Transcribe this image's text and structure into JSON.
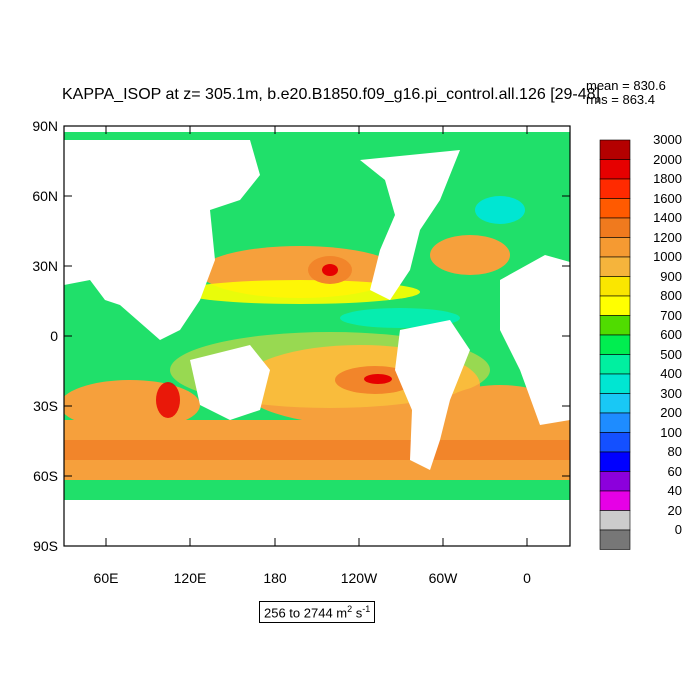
{
  "title": "KAPPA_ISOP at z= 305.1m, b.e20.B1850.f09_g16.pi_control.all.126 [29-48]",
  "stats": {
    "mean": "mean = 830.6",
    "rms": "rms = 863.4"
  },
  "map_data": {
    "y_ticks": [
      "90N",
      "60N",
      "30N",
      "0",
      "30S",
      "60S",
      "90S"
    ],
    "x_ticks": [
      "60E",
      "120E",
      "180",
      "120W",
      "60W",
      "0"
    ],
    "range_label": {
      "text": "256 to 2744 m",
      "unit_sup": "2",
      "unit_tail": " s",
      "unit_sup2": "-1"
    }
  },
  "colorbar": {
    "labels": [
      "3000",
      "2000",
      "1800",
      "1600",
      "1400",
      "1200",
      "1000",
      "900",
      "800",
      "700",
      "600",
      "500",
      "400",
      "300",
      "200",
      "100",
      "80",
      "60",
      "40",
      "20",
      "0"
    ],
    "colors": [
      "#b40000",
      "#e60000",
      "#ff2a00",
      "#ff5a00",
      "#f07a1e",
      "#f59a32",
      "#f5b43c",
      "#fae600",
      "#ffff00",
      "#50dc00",
      "#00ee50",
      "#00f0a0",
      "#00e6d2",
      "#19c8f5",
      "#1e8cff",
      "#1450ff",
      "#0000ff",
      "#8c00dc",
      "#e600e6",
      "#cccccc",
      "#777777"
    ]
  }
}
